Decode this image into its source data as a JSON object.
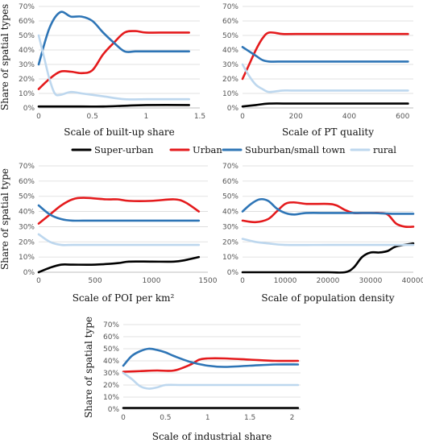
{
  "colors": {
    "super_urban": "#000000",
    "urban": "#e41a1c",
    "suburban": "#2e75b6",
    "rural": "#bdd7ee"
  },
  "legend": {
    "placement": "between rows 1 and 2",
    "items": [
      {
        "key": "super_urban",
        "label": "Super-urban"
      },
      {
        "key": "urban",
        "label": "Urban"
      },
      {
        "key": "suburban",
        "label": "Suburban/small town"
      },
      {
        "key": "rural",
        "label": "rural"
      }
    ]
  },
  "chart_data": [
    {
      "type": "line",
      "xlabel": "Scale of built-up share",
      "ylabel": "Share of spatial types",
      "xlim": [
        0,
        1.5
      ],
      "ylim": [
        0,
        70
      ],
      "xticks": [
        0,
        0.5,
        1,
        1.5
      ],
      "xtick_labels": [
        "0",
        "0.5",
        "1",
        "1.5"
      ],
      "yticks": [
        0,
        10,
        20,
        30,
        40,
        50,
        60,
        70
      ],
      "ytick_labels": [
        "0%",
        "10%",
        "20%",
        "30%",
        "40%",
        "50%",
        "60%",
        "70%"
      ],
      "grid": true,
      "series": [
        {
          "key": "super_urban",
          "name": "Super-urban",
          "x": [
            0,
            0.4,
            0.6,
            0.8,
            1.0,
            1.4
          ],
          "y": [
            1,
            1,
            1,
            1.5,
            2,
            2
          ]
        },
        {
          "key": "urban",
          "name": "Urban",
          "x": [
            0,
            0.1,
            0.2,
            0.3,
            0.4,
            0.5,
            0.6,
            0.7,
            0.8,
            0.9,
            1.0,
            1.2,
            1.4
          ],
          "y": [
            13,
            20,
            25,
            25,
            24,
            26,
            37,
            45,
            52,
            53,
            52,
            52,
            52
          ]
        },
        {
          "key": "suburban",
          "name": "Suburban/small town",
          "x": [
            0,
            0.1,
            0.2,
            0.3,
            0.4,
            0.5,
            0.6,
            0.7,
            0.8,
            0.9,
            1.0,
            1.2,
            1.4
          ],
          "y": [
            30,
            55,
            66,
            63,
            63,
            60,
            52,
            45,
            39,
            39,
            39,
            39,
            39
          ]
        },
        {
          "key": "rural",
          "name": "rural",
          "x": [
            0,
            0.05,
            0.1,
            0.15,
            0.2,
            0.3,
            0.4,
            0.6,
            0.8,
            1.0,
            1.2,
            1.4
          ],
          "y": [
            50,
            35,
            20,
            10,
            9,
            11,
            10,
            8,
            6,
            6,
            6,
            6
          ]
        }
      ]
    },
    {
      "type": "line",
      "xlabel": "Scale of PT quality",
      "ylabel": "",
      "xlim": [
        0,
        640
      ],
      "ylim": [
        0,
        70
      ],
      "xticks": [
        0,
        200,
        400,
        600
      ],
      "xtick_labels": [
        "0",
        "200",
        "400",
        "600"
      ],
      "yticks": [
        0,
        10,
        20,
        30,
        40,
        50,
        60,
        70
      ],
      "ytick_labels": [
        "0%",
        "10%",
        "20%",
        "30%",
        "40%",
        "50%",
        "60%",
        "70%"
      ],
      "grid": true,
      "series": [
        {
          "key": "super_urban",
          "name": "Super-urban",
          "x": [
            0,
            50,
            100,
            200,
            400,
            620
          ],
          "y": [
            1,
            2,
            3,
            3,
            3,
            3
          ]
        },
        {
          "key": "urban",
          "name": "Urban",
          "x": [
            0,
            25,
            50,
            75,
            100,
            150,
            200,
            400,
            620
          ],
          "y": [
            20,
            30,
            40,
            48,
            52,
            51,
            51,
            51,
            51
          ]
        },
        {
          "key": "suburban",
          "name": "Suburban/small town",
          "x": [
            0,
            25,
            50,
            75,
            100,
            150,
            200,
            400,
            620
          ],
          "y": [
            42,
            39,
            36,
            33,
            32,
            32,
            32,
            32,
            32
          ]
        },
        {
          "key": "rural",
          "name": "rural",
          "x": [
            0,
            25,
            50,
            75,
            100,
            150,
            200,
            400,
            620
          ],
          "y": [
            30,
            22,
            16,
            13,
            11,
            12,
            12,
            12,
            12
          ]
        }
      ]
    },
    {
      "type": "line",
      "xlabel": "Scale of POI per km²",
      "ylabel": "Share of spatial type",
      "xlim": [
        0,
        1500
      ],
      "ylim": [
        0,
        70
      ],
      "xticks": [
        0,
        500,
        1000,
        1500
      ],
      "xtick_labels": [
        "0",
        "500",
        "1000",
        "1500"
      ],
      "yticks": [
        0,
        10,
        20,
        30,
        40,
        50,
        60,
        70
      ],
      "ytick_labels": [
        "0%",
        "10%",
        "20%",
        "30%",
        "40%",
        "50%",
        "60%",
        "70%"
      ],
      "grid": true,
      "series": [
        {
          "key": "super_urban",
          "name": "Super-urban",
          "x": [
            0,
            100,
            200,
            300,
            500,
            700,
            800,
            1000,
            1200,
            1300,
            1420
          ],
          "y": [
            0,
            3,
            5,
            5,
            5,
            6,
            7,
            7,
            7,
            8,
            10
          ]
        },
        {
          "key": "urban",
          "name": "Urban",
          "x": [
            0,
            100,
            200,
            300,
            400,
            600,
            700,
            800,
            1000,
            1200,
            1300,
            1420
          ],
          "y": [
            32,
            38,
            44,
            48,
            49,
            48,
            48,
            47,
            47,
            48,
            46,
            40
          ]
        },
        {
          "key": "suburban",
          "name": "Suburban/small town",
          "x": [
            0,
            100,
            200,
            300,
            500,
            1000,
            1420
          ],
          "y": [
            44,
            38,
            35,
            34,
            34,
            34,
            34
          ]
        },
        {
          "key": "rural",
          "name": "rural",
          "x": [
            0,
            100,
            200,
            300,
            500,
            1000,
            1420
          ],
          "y": [
            25,
            20,
            18,
            18,
            18,
            18,
            18
          ]
        }
      ]
    },
    {
      "type": "line",
      "xlabel": "Scale of population density",
      "ylabel": "",
      "xlim": [
        0,
        40000
      ],
      "ylim": [
        0,
        70
      ],
      "xticks": [
        0,
        10000,
        20000,
        30000,
        40000
      ],
      "xtick_labels": [
        "0",
        "10000",
        "20000",
        "30000",
        "40000"
      ],
      "yticks": [
        0,
        10,
        20,
        30,
        40,
        50,
        60,
        70
      ],
      "ytick_labels": [
        "0%",
        "10%",
        "20%",
        "30%",
        "40%",
        "50%",
        "60%",
        "70%"
      ],
      "grid": true,
      "series": [
        {
          "key": "super_urban",
          "name": "Super-urban",
          "x": [
            0,
            10000,
            20000,
            24000,
            26000,
            28000,
            30000,
            32000,
            34000,
            36000,
            40000
          ],
          "y": [
            0,
            0,
            0,
            0,
            3,
            10,
            13,
            13,
            14,
            17,
            19
          ]
        },
        {
          "key": "urban",
          "name": "Urban",
          "x": [
            0,
            3000,
            6000,
            8000,
            10000,
            12000,
            15000,
            20000,
            22000,
            24000,
            26000,
            28000,
            30000,
            32000,
            34000,
            36000,
            38000,
            40000
          ],
          "y": [
            34,
            33,
            35,
            40,
            45,
            46,
            45,
            45,
            44,
            41,
            39,
            39,
            39,
            39,
            38,
            32,
            30,
            30
          ]
        },
        {
          "key": "suburban",
          "name": "Suburban/small town",
          "x": [
            0,
            2000,
            4000,
            6000,
            8000,
            10000,
            12000,
            15000,
            20000,
            25000,
            30000,
            35000,
            40000
          ],
          "y": [
            40,
            45,
            48,
            47,
            42,
            39,
            38,
            39,
            39,
            39,
            39,
            38.5,
            38.5
          ]
        },
        {
          "key": "rural",
          "name": "rural",
          "x": [
            0,
            3000,
            6000,
            10000,
            20000,
            30000,
            40000
          ],
          "y": [
            22,
            20,
            19,
            18,
            18,
            18,
            18
          ]
        }
      ]
    },
    {
      "type": "line",
      "xlabel": "Scale of industrial share",
      "ylabel": "Share of spatial type",
      "xlim": [
        0,
        2.1
      ],
      "ylim": [
        0,
        70
      ],
      "xticks": [
        0,
        0.5,
        1,
        1.5,
        2
      ],
      "xtick_labels": [
        "0",
        "0.5",
        "1",
        "1.5",
        "2"
      ],
      "yticks": [
        0,
        10,
        20,
        30,
        40,
        50,
        60,
        70
      ],
      "ytick_labels": [
        "0%",
        "10%",
        "20%",
        "30%",
        "40%",
        "50%",
        "60%",
        "70%"
      ],
      "grid": true,
      "series": [
        {
          "key": "super_urban",
          "name": "Super-urban",
          "x": [
            0,
            1,
            2.07
          ],
          "y": [
            1,
            1,
            1
          ]
        },
        {
          "key": "urban",
          "name": "Urban",
          "x": [
            0,
            0.2,
            0.4,
            0.6,
            0.8,
            0.9,
            1.0,
            1.2,
            1.5,
            1.8,
            2.07
          ],
          "y": [
            31,
            31.5,
            32,
            32,
            37,
            41,
            42,
            42,
            41,
            40,
            40
          ]
        },
        {
          "key": "suburban",
          "name": "Suburban/small town",
          "x": [
            0,
            0.1,
            0.2,
            0.3,
            0.4,
            0.5,
            0.6,
            0.8,
            1.0,
            1.2,
            1.5,
            1.8,
            2.07
          ],
          "y": [
            36,
            44,
            48,
            50,
            49,
            47,
            44,
            39,
            36,
            35,
            36,
            37,
            37
          ]
        },
        {
          "key": "rural",
          "name": "rural",
          "x": [
            0,
            0.1,
            0.2,
            0.3,
            0.4,
            0.5,
            0.7,
            1.0,
            1.5,
            2.07
          ],
          "y": [
            30,
            25,
            19,
            17,
            18,
            20,
            20,
            20,
            20,
            20
          ]
        }
      ]
    }
  ]
}
